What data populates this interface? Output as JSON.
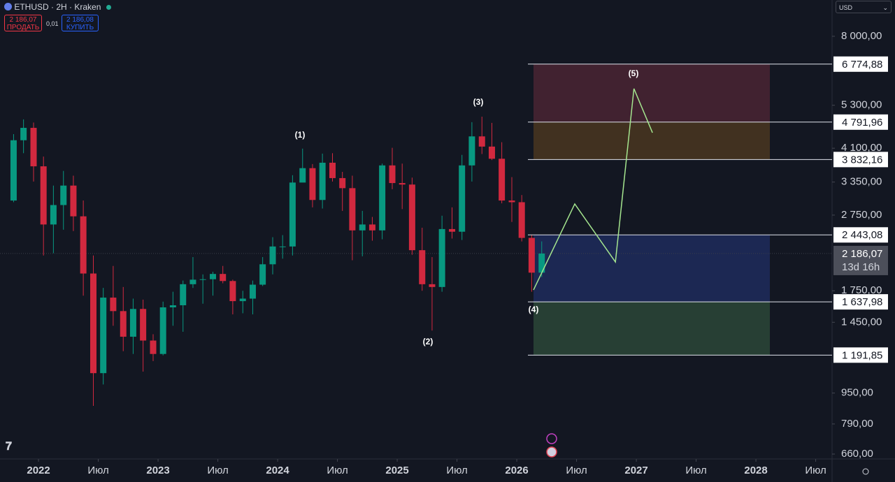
{
  "header": {
    "symbol": "ETHUSD · 2H · Kraken",
    "sell_price": "2 186,07",
    "sell_label": "ПРОДАТЬ",
    "spread": "0,01",
    "buy_price": "2 186,08",
    "buy_label": "КУПИТЬ",
    "currency": "USD"
  },
  "chart_data": {
    "type": "candlestick",
    "log_scale": true,
    "x": [
      2021.75,
      2021.833,
      2021.917,
      2022,
      2022.083,
      2022.167,
      2022.25,
      2022.333,
      2022.417,
      2022.5,
      2022.583,
      2022.667,
      2022.75,
      2022.833,
      2022.917,
      2023,
      2023.083,
      2023.167,
      2023.25,
      2023.333,
      2023.417,
      2023.5,
      2023.583,
      2023.667,
      2023.75,
      2023.833,
      2023.917,
      2024,
      2024.083,
      2024.167,
      2024.25,
      2024.333,
      2024.417,
      2024.5,
      2024.583,
      2024.667,
      2024.75,
      2024.833,
      2024.917,
      2025,
      2025.083,
      2025.167,
      2025.25,
      2025.333,
      2025.417,
      2025.5,
      2025.583,
      2025.667,
      2025.75,
      2025.833,
      2025.917,
      2026,
      2026.083,
      2026.167
    ],
    "open": [
      3000,
      4300,
      4630,
      3680,
      2600,
      2920,
      3280,
      2730,
      1940,
      1070,
      1680,
      1550,
      1330,
      1570,
      1300,
      1200,
      1585,
      1605,
      1820,
      1870,
      1875,
      1935,
      1855,
      1645,
      1670,
      1815,
      2050,
      2280,
      2280,
      3340,
      3640,
      3010,
      3760,
      3430,
      3230,
      2510,
      2600,
      2510,
      3700,
      3330,
      3300,
      2230,
      1820,
      1790,
      2530,
      2490,
      3700,
      4400,
      4140,
      3850,
      3000,
      2970,
      2400,
      1950
    ],
    "high": [
      4460,
      4870,
      4780,
      3900,
      3280,
      3580,
      3480,
      3000,
      2160,
      1780,
      2030,
      1790,
      1670,
      1660,
      1350,
      1640,
      1740,
      1860,
      2140,
      1930,
      1960,
      2030,
      1870,
      1750,
      1860,
      2140,
      2410,
      2440,
      3490,
      4090,
      3730,
      3970,
      3980,
      3560,
      3480,
      2820,
      2720,
      3740,
      4110,
      3740,
      3440,
      2550,
      2140,
      2740,
      2880,
      3940,
      4790,
      4950,
      4770,
      4250,
      3450,
      3100,
      2440,
      2350
    ],
    "low": [
      2970,
      3980,
      3360,
      2160,
      2190,
      2520,
      2500,
      1700,
      880,
      1000,
      1420,
      1220,
      1200,
      1080,
      1150,
      1190,
      1420,
      1370,
      1780,
      1620,
      1700,
      1830,
      1520,
      1530,
      1520,
      1800,
      1930,
      2120,
      2160,
      3350,
      2880,
      2860,
      3360,
      2820,
      2100,
      2150,
      2360,
      2380,
      3210,
      2850,
      2170,
      1750,
      1380,
      1740,
      2390,
      2370,
      3360,
      3960,
      3820,
      2950,
      2640,
      2350,
      1740,
      1900
    ],
    "close": [
      4300,
      4630,
      3680,
      2600,
      2920,
      3280,
      2730,
      1940,
      1070,
      1680,
      1550,
      1330,
      1570,
      1300,
      1200,
      1585,
      1605,
      1820,
      1870,
      1875,
      1935,
      1855,
      1645,
      1670,
      1815,
      2050,
      2280,
      2280,
      3340,
      3640,
      3010,
      3760,
      3430,
      3230,
      2510,
      2600,
      2510,
      3700,
      3330,
      3300,
      2230,
      1820,
      1790,
      2530,
      2490,
      3700,
      4400,
      4140,
      3850,
      3000,
      2970,
      2400,
      1950,
      2186
    ],
    "up_color": "#089981",
    "down_color": "#d2293f",
    "xlim": [
      2021.678,
      2028.637
    ],
    "ylim": [
      641,
      9936
    ],
    "xticks": [
      2022,
      {
        "value": 2022.5,
        "label": "Июл"
      },
      2023,
      {
        "value": 2023.5,
        "label": "Июл"
      },
      2024,
      {
        "value": 2024.5,
        "label": "Июл"
      },
      2025,
      {
        "value": 2025.5,
        "label": "Июл"
      },
      2026,
      {
        "value": 2026.5,
        "label": "Июл"
      },
      2027,
      {
        "value": 2027.5,
        "label": "Июл"
      },
      2028,
      {
        "value": 2028.5,
        "label": "Июл"
      }
    ],
    "yticks": [
      {
        "value": 8000,
        "label": "8 000,00"
      },
      {
        "value": 5300,
        "label": "5 300,00"
      },
      {
        "value": 4100,
        "label": "4 100,00"
      },
      {
        "value": 3350,
        "label": "3 350,00"
      },
      {
        "value": 2750,
        "label": "2 750,00"
      },
      {
        "value": 1750,
        "label": "1 750,00"
      },
      {
        "value": 1450,
        "label": "1 450,00"
      },
      {
        "value": 950,
        "label": "950,00"
      },
      {
        "value": 790,
        "label": "790,00"
      },
      {
        "value": 660,
        "label": "660,00"
      }
    ],
    "levels": [
      {
        "value": 6774.88,
        "label": "6 774,88"
      },
      {
        "value": 4791.96,
        "label": "4 791,96"
      },
      {
        "value": 3832.16,
        "label": "3 832,16"
      },
      {
        "value": 2443.08,
        "label": "2 443,08"
      },
      {
        "value": 1637.98,
        "label": "1 637,98"
      },
      {
        "value": 1191.85,
        "label": "1 191,85"
      }
    ],
    "zones": [
      {
        "top": 6774.88,
        "bottom": 4791.96,
        "color": "#4a2432"
      },
      {
        "top": 4791.96,
        "bottom": 3832.16,
        "color": "#4a3620"
      },
      {
        "top": 2443.08,
        "bottom": 1637.98,
        "color": "#1e2b5c"
      },
      {
        "top": 1637.98,
        "bottom": 1191.85,
        "color": "#2b4637"
      }
    ],
    "projection": {
      "x": [
        2026.14,
        2026.485,
        2026.825,
        2026.98,
        2027.135
      ],
      "y": [
        1759,
        2939,
        2078,
        5850,
        4498
      ],
      "color": "#a5e68f"
    },
    "last_price": {
      "value": 2186.07,
      "label": "2 186,07",
      "countdown": "13d 16h"
    },
    "wave_labels": [
      "(1)",
      "(2)",
      "(3)",
      "(4)",
      "(5)"
    ]
  }
}
